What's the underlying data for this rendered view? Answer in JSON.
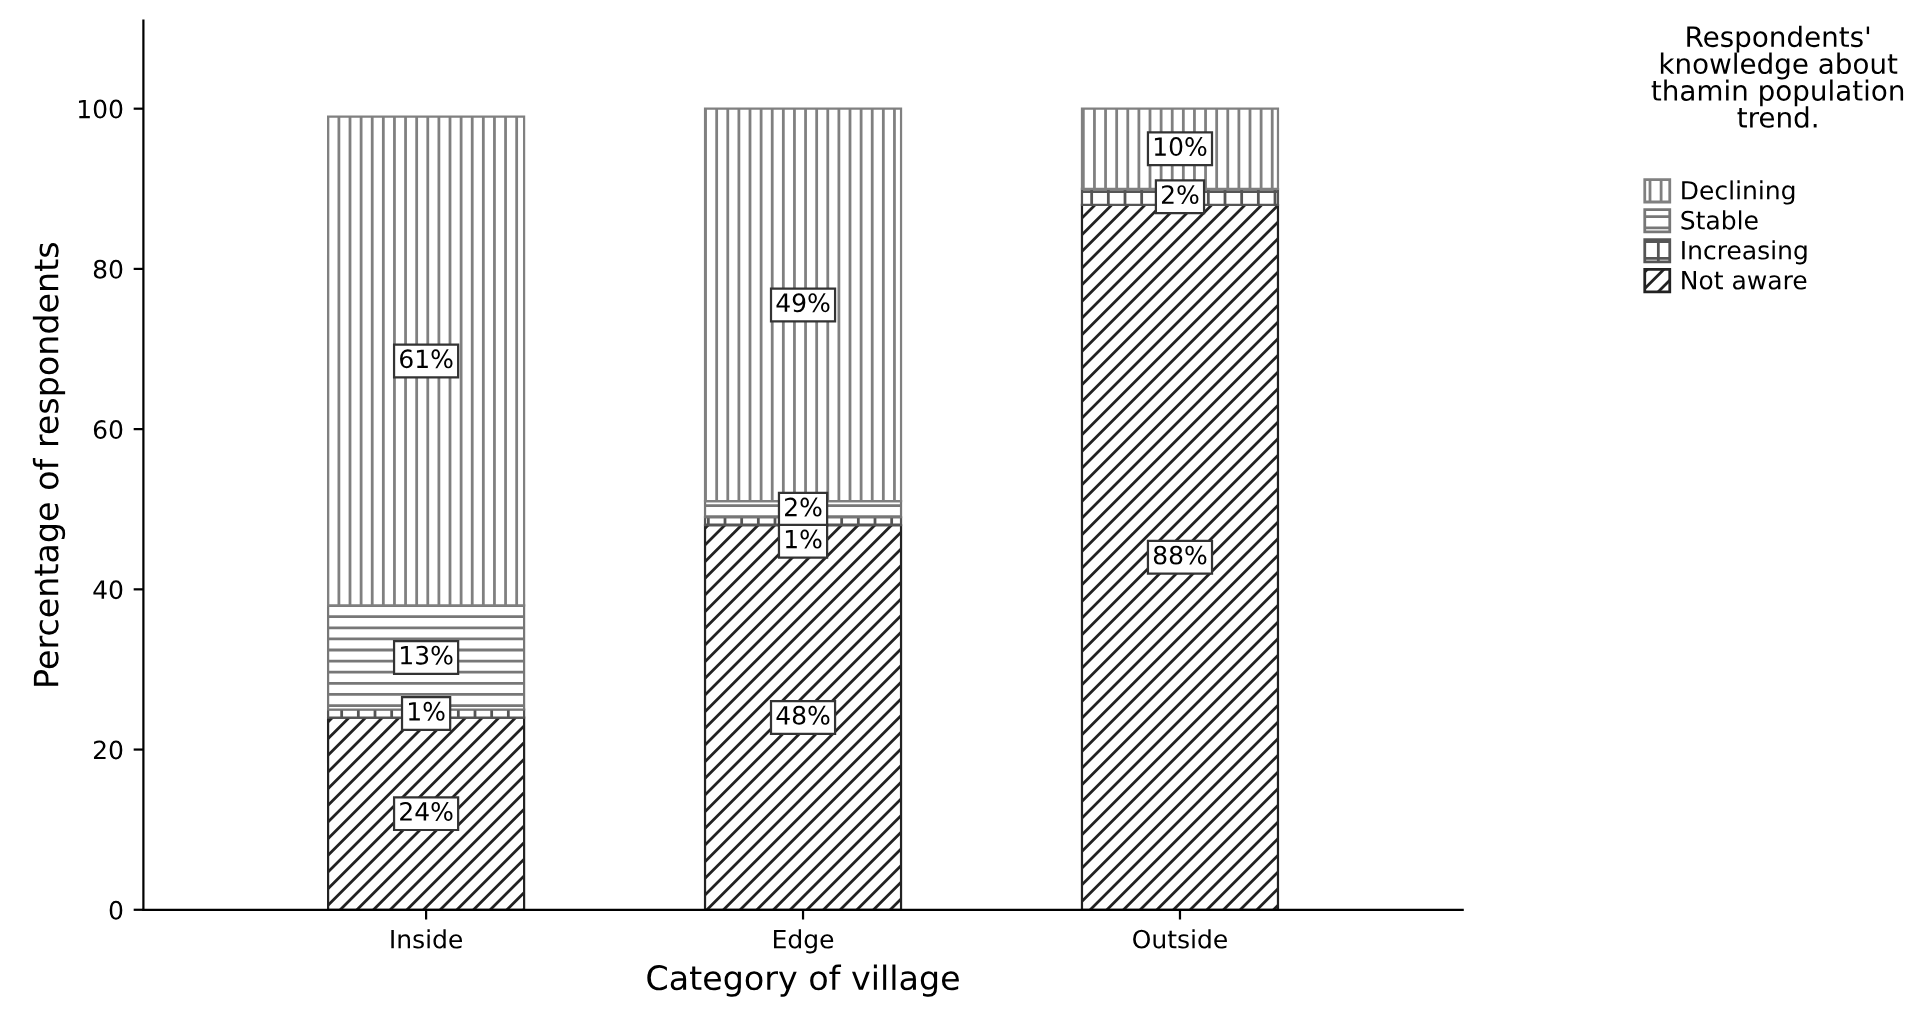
{
  "chart_data": {
    "type": "bar",
    "stacked": true,
    "xlabel": "Category of village",
    "ylabel": "Percentage of respondents",
    "legend_title": "Respondents' knowledge about thamin population trend.",
    "legend": "top right",
    "grid": false,
    "categories": [
      "Inside",
      "Edge",
      "Outside"
    ],
    "ylim": [
      0,
      111
    ],
    "yticks": [
      0,
      20,
      40,
      60,
      80,
      100
    ],
    "series": [
      {
        "name": "Not aware",
        "color": "#222222",
        "values": [
          24,
          48,
          88
        ],
        "value_labels": [
          "24%",
          "48%",
          "88%"
        ]
      },
      {
        "name": "Increasing",
        "color": "#555555",
        "values": [
          1,
          1,
          2
        ],
        "value_labels": [
          "1%",
          "1%",
          "2%"
        ]
      },
      {
        "name": "Stable",
        "color": "#777777",
        "values": [
          13,
          2,
          0
        ],
        "value_labels": [
          "13%",
          "2%",
          null
        ]
      },
      {
        "name": "Declining",
        "color": "#808080",
        "values": [
          61,
          49,
          10
        ],
        "value_labels": [
          "61%",
          "49%",
          "10%"
        ]
      }
    ]
  }
}
